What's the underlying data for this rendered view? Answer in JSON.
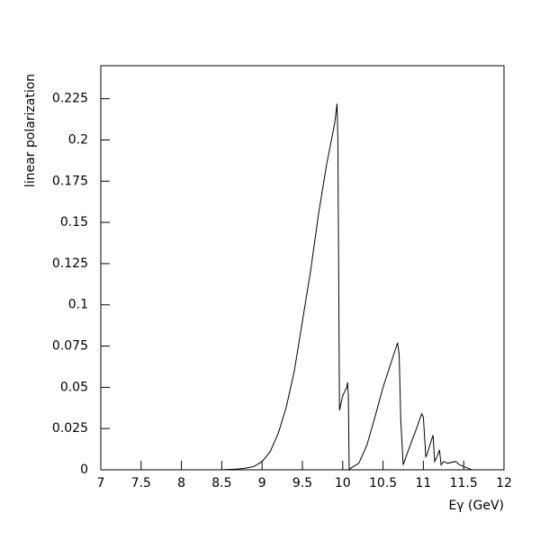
{
  "chart_data": {
    "type": "line",
    "x_label": "Eγ (GeV)",
    "y_label": "linear polarization",
    "x": [
      7,
      8.5,
      8.7,
      8.8,
      8.9,
      9.0,
      9.1,
      9.2,
      9.3,
      9.4,
      9.5,
      9.6,
      9.7,
      9.8,
      9.9,
      9.93,
      9.94,
      9.96,
      10.0,
      10.05,
      10.06,
      10.07,
      10.08,
      10.1,
      10.2,
      10.3,
      10.4,
      10.5,
      10.6,
      10.68,
      10.7,
      10.72,
      10.75,
      10.8,
      10.9,
      10.98,
      11.0,
      11.03,
      11.05,
      11.1,
      11.12,
      11.14,
      11.17,
      11.2,
      11.22,
      11.25,
      11.3,
      11.4,
      11.45,
      11.5,
      11.55,
      11.6,
      12
    ],
    "series": [
      {
        "color": "#000000",
        "values": [
          0,
          0,
          0.0005,
          0.001,
          0.002,
          0.005,
          0.011,
          0.022,
          0.038,
          0.06,
          0.09,
          0.12,
          0.155,
          0.185,
          0.21,
          0.222,
          0.2,
          0.036,
          0.045,
          0.05,
          0.053,
          0.045,
          0,
          0.001,
          0.004,
          0.015,
          0.032,
          0.05,
          0.065,
          0.077,
          0.07,
          0.03,
          0.003,
          0.01,
          0.023,
          0.034,
          0.032,
          0.008,
          0.01,
          0.018,
          0.021,
          0.005,
          0.008,
          0.012,
          0.003,
          0.005,
          0.004,
          0.005,
          0.003,
          0.002,
          0.001,
          0,
          0
        ]
      }
    ],
    "xlim": [
      7,
      12
    ],
    "ylim": [
      0,
      0.245
    ],
    "xticks": [
      7,
      7.5,
      8,
      8.5,
      9,
      9.5,
      10,
      10.5,
      11,
      11.5,
      12
    ],
    "yticks": [
      0,
      0.025,
      0.05,
      0.075,
      0.1,
      0.125,
      0.15,
      0.175,
      0.2,
      0.225
    ]
  }
}
